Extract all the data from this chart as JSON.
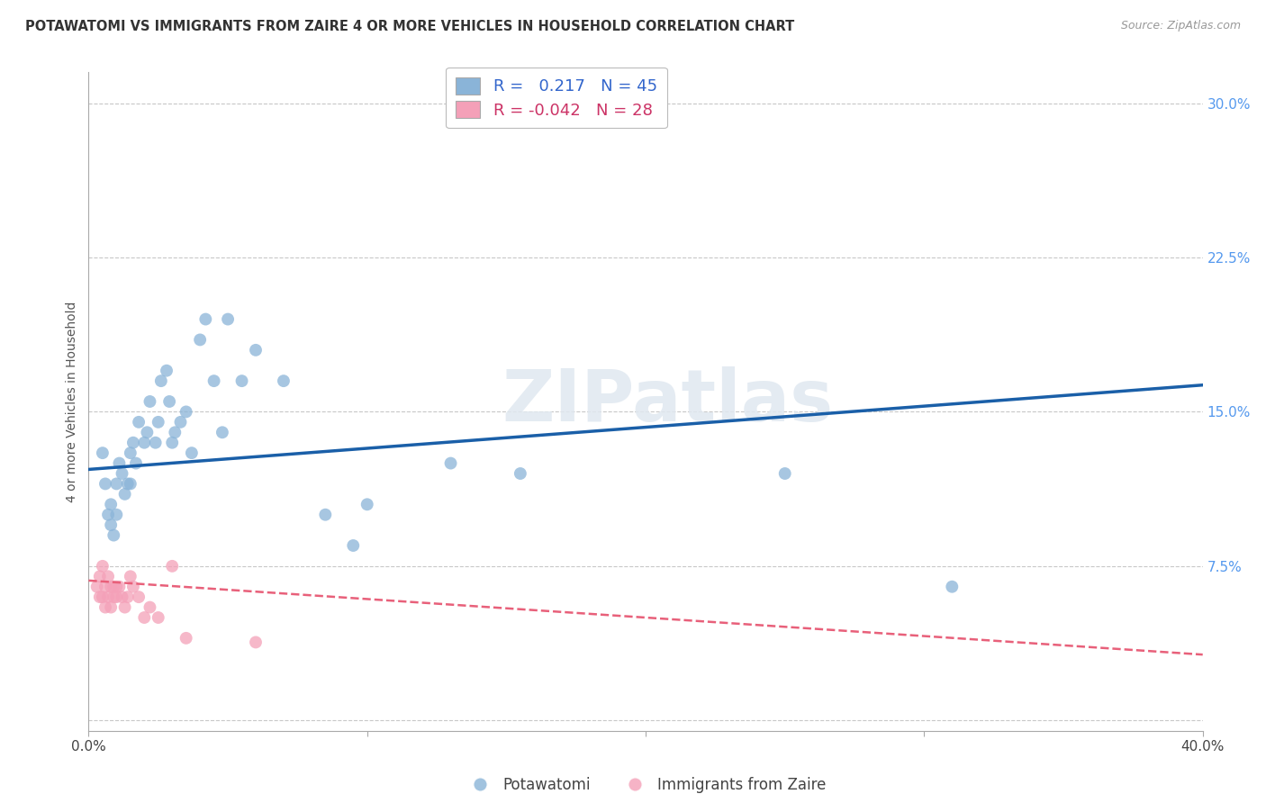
{
  "title": "POTAWATOMI VS IMMIGRANTS FROM ZAIRE 4 OR MORE VEHICLES IN HOUSEHOLD CORRELATION CHART",
  "source": "Source: ZipAtlas.com",
  "ylabel": "4 or more Vehicles in Household",
  "xlim": [
    0.0,
    0.4
  ],
  "ylim": [
    -0.005,
    0.315
  ],
  "yticks_right": [
    0.0,
    0.075,
    0.15,
    0.225,
    0.3
  ],
  "ytick_labels_right": [
    "",
    "7.5%",
    "15.0%",
    "22.5%",
    "30.0%"
  ],
  "background_color": "#ffffff",
  "grid_color": "#c8c8c8",
  "blue_color": "#8ab4d8",
  "pink_color": "#f4a0b8",
  "blue_line_color": "#1a5fa8",
  "pink_line_color": "#e8607a",
  "right_axis_color": "#5599ee",
  "legend_blue_label_r": "R=",
  "legend_blue_label_val": "  0.217",
  "legend_blue_label_n": "  N =",
  "legend_blue_label_nval": " 45",
  "legend_pink_label_r": "R =",
  "legend_pink_label_val": "-0.042",
  "legend_pink_label_n": "  N =",
  "legend_pink_label_nval": " 28",
  "legend_label1": "Potawatomi",
  "legend_label2": "Immigrants from Zaire",
  "watermark": "ZIPatlas",
  "blue_scatter_x": [
    0.005,
    0.006,
    0.007,
    0.008,
    0.008,
    0.009,
    0.01,
    0.01,
    0.011,
    0.012,
    0.013,
    0.014,
    0.015,
    0.015,
    0.016,
    0.017,
    0.018,
    0.02,
    0.021,
    0.022,
    0.024,
    0.025,
    0.026,
    0.028,
    0.029,
    0.03,
    0.031,
    0.033,
    0.035,
    0.037,
    0.04,
    0.042,
    0.045,
    0.048,
    0.05,
    0.055,
    0.06,
    0.07,
    0.085,
    0.095,
    0.1,
    0.13,
    0.155,
    0.25,
    0.31
  ],
  "blue_scatter_y": [
    0.13,
    0.115,
    0.1,
    0.105,
    0.095,
    0.09,
    0.115,
    0.1,
    0.125,
    0.12,
    0.11,
    0.115,
    0.13,
    0.115,
    0.135,
    0.125,
    0.145,
    0.135,
    0.14,
    0.155,
    0.135,
    0.145,
    0.165,
    0.17,
    0.155,
    0.135,
    0.14,
    0.145,
    0.15,
    0.13,
    0.185,
    0.195,
    0.165,
    0.14,
    0.195,
    0.165,
    0.18,
    0.165,
    0.1,
    0.085,
    0.105,
    0.125,
    0.12,
    0.12,
    0.065
  ],
  "pink_scatter_x": [
    0.003,
    0.004,
    0.004,
    0.005,
    0.005,
    0.006,
    0.006,
    0.007,
    0.007,
    0.008,
    0.008,
    0.009,
    0.009,
    0.01,
    0.01,
    0.011,
    0.012,
    0.013,
    0.014,
    0.015,
    0.016,
    0.018,
    0.02,
    0.022,
    0.025,
    0.03,
    0.035,
    0.06
  ],
  "pink_scatter_y": [
    0.065,
    0.07,
    0.06,
    0.075,
    0.06,
    0.065,
    0.055,
    0.07,
    0.06,
    0.065,
    0.055,
    0.065,
    0.06,
    0.065,
    0.06,
    0.065,
    0.06,
    0.055,
    0.06,
    0.07,
    0.065,
    0.06,
    0.05,
    0.055,
    0.05,
    0.075,
    0.04,
    0.038
  ],
  "blue_line_x": [
    0.0,
    0.4
  ],
  "blue_line_y_start": 0.122,
  "blue_line_y_end": 0.163,
  "pink_line_x": [
    0.0,
    0.4
  ],
  "pink_line_y_start": 0.068,
  "pink_line_y_end": 0.032
}
